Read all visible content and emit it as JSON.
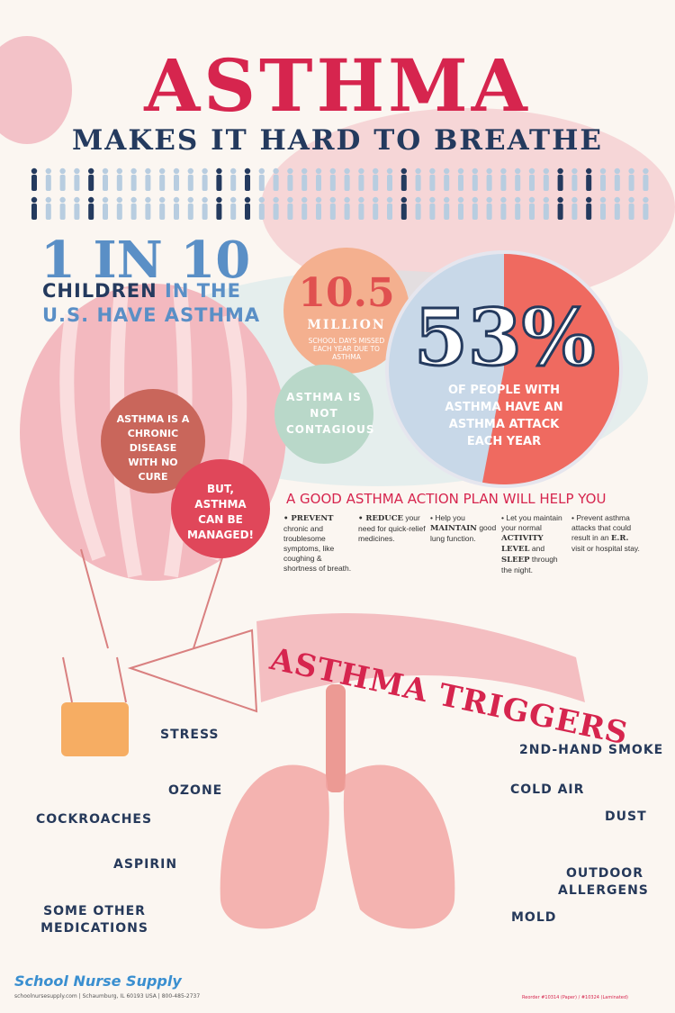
{
  "header": {
    "title": "ASTHMA",
    "subtitle": "MAKES IT HARD TO BREATHE"
  },
  "stats": {
    "one_in_ten": {
      "headline": "1 IN 10",
      "lines": [
        [
          "CHILDREN",
          " IN THE"
        ],
        [
          "U.S. HAVE ASTHMA"
        ]
      ]
    },
    "school_days": {
      "number": "10.5",
      "unit": "MILLION",
      "text": "SCHOOL DAYS MISSED EACH YEAR DUE TO ASTHMA"
    },
    "attack": {
      "percent": {
        "value": 53,
        "label": "53%"
      },
      "text": "OF PEOPLE WITH ASTHMA HAVE AN ASTHMA ATTACK EACH YEAR",
      "color": "#ef6a60",
      "rest_color": "#c8d8e8"
    }
  },
  "facts": {
    "not_contagious": "ASTHMA IS NOT CONTAGIOUS",
    "chronic": "ASTHMA IS A CHRONIC DISEASE WITH NO CURE",
    "managed": "BUT, ASTHMA CAN BE MANAGED!"
  },
  "action_plan": {
    "heading": "A GOOD ASTHMA ACTION PLAN WILL HELP YOU",
    "items": [
      [
        {
          "text": "• PREVENT",
          "bold": true
        },
        {
          "text": " chronic and troublesome symptoms, like coughing & shortness of breath.",
          "bold": false
        }
      ],
      [
        {
          "text": "• REDUCE",
          "bold": true
        },
        {
          "text": " your need for quick-relief medicines.",
          "bold": false
        }
      ],
      [
        {
          "text": "• Help you ",
          "bold": false
        },
        {
          "text": "MAINTAIN",
          "bold": true
        },
        {
          "text": " good lung function.",
          "bold": false
        }
      ],
      [
        {
          "text": "• Let you maintain your normal ",
          "bold": false
        },
        {
          "text": "ACTIVITY LEVEL",
          "bold": true
        },
        {
          "text": " and ",
          "bold": false
        },
        {
          "text": "SLEEP",
          "bold": true
        },
        {
          "text": " through the night.",
          "bold": false
        }
      ],
      [
        {
          "text": "• Prevent asthma attacks that could result in an ",
          "bold": false
        },
        {
          "text": "E.R.",
          "bold": true
        },
        {
          "text": " visit or hospital stay.",
          "bold": false
        }
      ]
    ]
  },
  "triggers": {
    "title": "ASTHMA TRIGGERS",
    "left": [
      "STRESS",
      "OZONE",
      "COCKROACHES",
      "ASPIRIN",
      "SOME OTHER MEDICATIONS"
    ],
    "right": [
      "2ND-HAND SMOKE",
      "COLD AIR",
      "DUST",
      "OUTDOOR ALLERGENS",
      "MOLD"
    ]
  },
  "footer": {
    "brand": "School Nurse Supply",
    "contact": "schoolnursesupply.com | Schaumburg, IL 60193 USA | 800-485-2737",
    "reorder": "Reorder #10314 (Paper) / #10324 (Laminated)"
  }
}
